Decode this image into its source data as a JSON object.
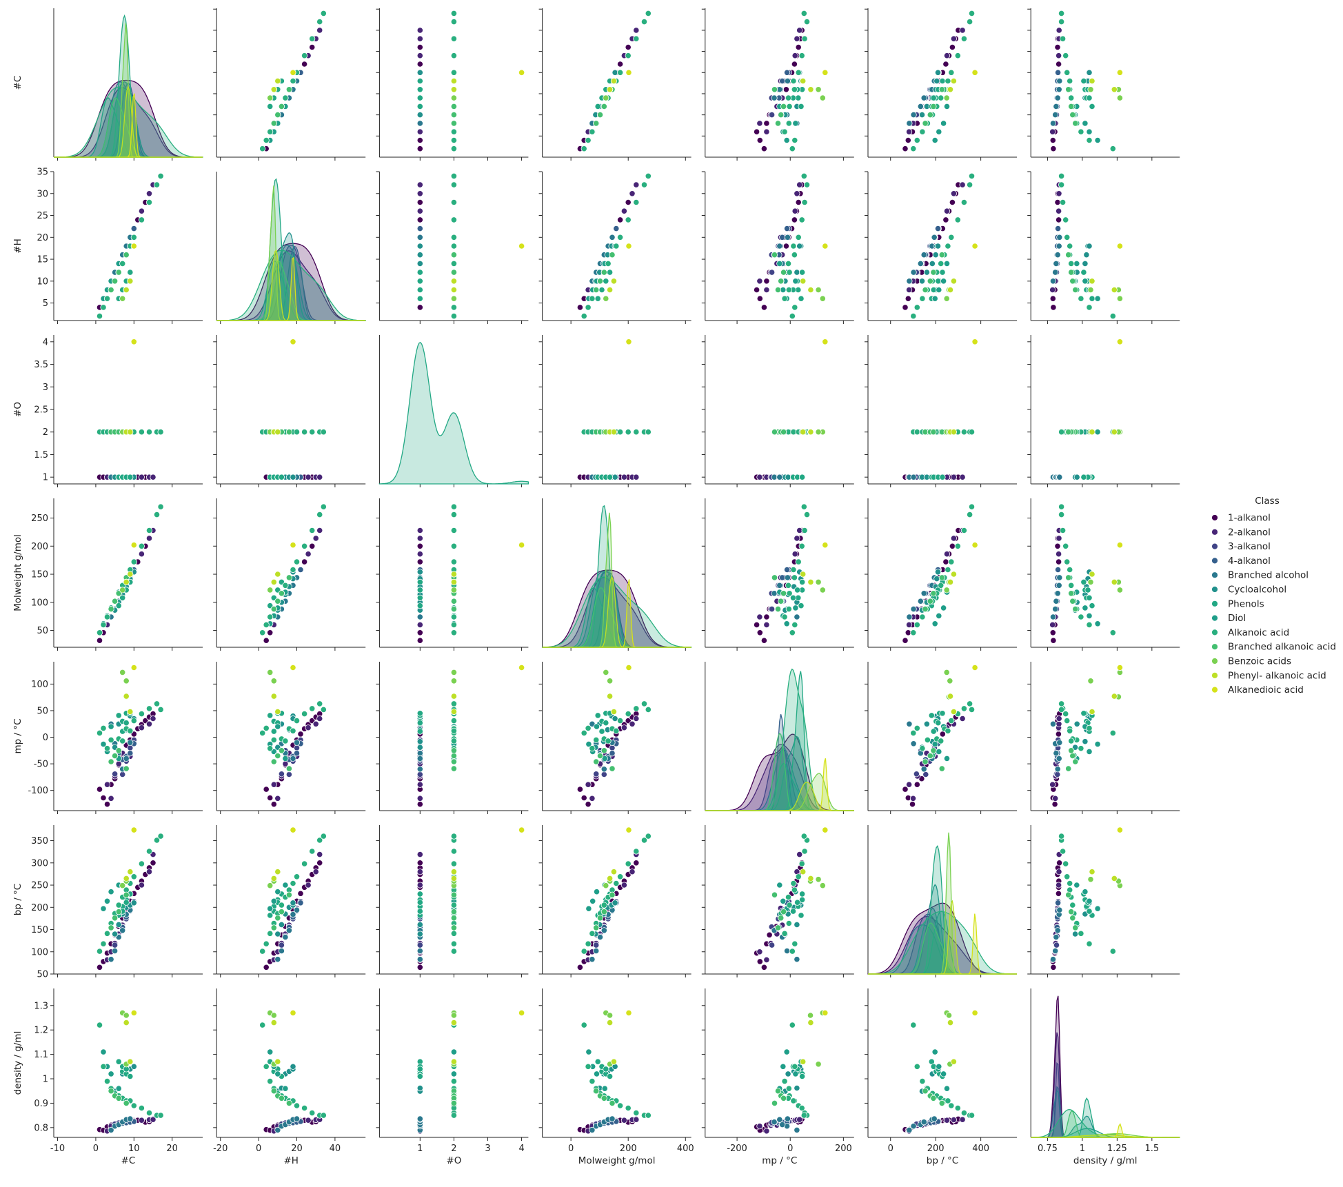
{
  "chart_data": {
    "type": "scatter",
    "variables": [
      "#C",
      "#H",
      "#O",
      "Molweight g/mol",
      "mp / °C",
      "bp / °C",
      "density / g/ml"
    ],
    "axes": [
      {
        "label": "#C",
        "range": [
          -11,
          28
        ],
        "ticks": [
          -10,
          0,
          10,
          20
        ]
      },
      {
        "label": "#H",
        "range": [
          -22,
          56
        ],
        "ticks": [
          -20,
          0,
          20,
          40
        ]
      },
      {
        "label": "#O",
        "range": [
          -0.2,
          4.2
        ],
        "ticks": [
          1,
          2,
          3,
          4
        ]
      },
      {
        "label": "Molweight g/mol",
        "range": [
          -100,
          420
        ],
        "ticks": [
          0,
          200,
          400
        ]
      },
      {
        "label": "mp / °C",
        "range": [
          -320,
          240
        ],
        "ticks": [
          -200,
          0,
          200
        ]
      },
      {
        "label": "bp / °C",
        "range": [
          -100,
          560
        ],
        "ticks": [
          0,
          200,
          400
        ]
      },
      {
        "label": "density / g/ml",
        "range": [
          0.63,
          1.7
        ],
        "ticks": [
          0.75,
          1.0,
          1.25,
          1.5
        ]
      }
    ],
    "row_axes": [
      {
        "label": "#C",
        "range": [
          0.0,
          17.6
        ],
        "ticks": [
          2.5,
          5.0,
          7.5,
          10.0,
          12.5,
          15.0,
          17.5
        ]
      },
      {
        "label": "#H",
        "range": [
          1.0,
          35.0
        ],
        "ticks": [
          5,
          10,
          15,
          20,
          25,
          30,
          35
        ]
      },
      {
        "label": "#O",
        "range": [
          0.85,
          4.15
        ],
        "ticks": [
          1.0,
          1.5,
          2.0,
          2.5,
          3.0,
          3.5,
          4.0
        ]
      },
      {
        "label": "Molweight g/mol",
        "range": [
          20,
          285
        ],
        "ticks": [
          50,
          100,
          150,
          200,
          250
        ]
      },
      {
        "label": "mp / °C",
        "range": [
          -138,
          142
        ],
        "ticks": [
          -100,
          -50,
          0,
          50,
          100
        ]
      },
      {
        "label": "bp / °C",
        "range": [
          50,
          385
        ],
        "ticks": [
          50,
          100,
          150,
          200,
          250,
          300,
          350
        ]
      },
      {
        "label": "density / g/ml",
        "range": [
          0.76,
          1.37
        ],
        "ticks": [
          0.8,
          0.9,
          1.0,
          1.1,
          1.2,
          1.3
        ]
      }
    ],
    "legend": {
      "title": "Class",
      "position": "right",
      "entries": [
        "1-alkanol",
        "2-alkanol",
        "3-alkanol",
        "4-alkanol",
        "Branched alcohol",
        "Cycloalcohol",
        "Phenols",
        "Diol",
        "Alkanoic acid",
        "Branched alkanoic acid",
        "Benzoic acids",
        "Phenyl- alkanoic acid",
        "Alkanedioic acid"
      ],
      "colors": [
        "#440154",
        "#482576",
        "#414487",
        "#35608d",
        "#2a788e",
        "#21918c",
        "#22a884",
        "#1f9e89",
        "#29af7f",
        "#44bf70",
        "#7ad151",
        "#bddf26",
        "#d5e21a"
      ]
    },
    "columns": [
      "class",
      "#C",
      "#H",
      "#O",
      "Molweight g/mol",
      "mp / °C",
      "bp / °C",
      "density / g/ml"
    ],
    "rows": [
      [
        0,
        1,
        4,
        1,
        32,
        -98,
        65,
        0.792
      ],
      [
        0,
        2,
        6,
        1,
        46,
        -114,
        78,
        0.789
      ],
      [
        0,
        3,
        8,
        1,
        60,
        -126,
        97,
        0.803
      ],
      [
        0,
        4,
        10,
        1,
        74,
        -89,
        118,
        0.81
      ],
      [
        0,
        5,
        12,
        1,
        88,
        -78,
        138,
        0.814
      ],
      [
        0,
        6,
        14,
        1,
        102,
        -52,
        157,
        0.814
      ],
      [
        0,
        7,
        16,
        1,
        116,
        -34,
        176,
        0.822
      ],
      [
        0,
        8,
        18,
        1,
        130,
        -15,
        195,
        0.824
      ],
      [
        0,
        9,
        20,
        1,
        144,
        -5,
        214,
        0.827
      ],
      [
        0,
        10,
        22,
        1,
        158,
        6,
        231,
        0.829
      ],
      [
        0,
        11,
        24,
        1,
        172,
        16,
        245,
        0.83
      ],
      [
        0,
        12,
        26,
        1,
        186,
        24,
        259,
        0.831
      ],
      [
        0,
        13,
        28,
        1,
        200,
        31,
        274,
        0.822
      ],
      [
        0,
        14,
        30,
        1,
        214,
        38,
        289,
        0.824
      ],
      [
        0,
        15,
        32,
        1,
        228,
        44,
        300,
        0.835
      ],
      [
        1,
        3,
        8,
        1,
        60,
        -89,
        82,
        0.786
      ],
      [
        1,
        4,
        10,
        1,
        74,
        -115,
        100,
        0.806
      ],
      [
        1,
        5,
        12,
        1,
        88,
        -73,
        119,
        0.809
      ],
      [
        1,
        6,
        14,
        1,
        102,
        -50,
        140,
        0.81
      ],
      [
        1,
        7,
        16,
        1,
        116,
        -30,
        160,
        0.817
      ],
      [
        1,
        8,
        18,
        1,
        130,
        -38,
        179,
        0.819
      ],
      [
        1,
        9,
        20,
        1,
        144,
        -36,
        198,
        0.821
      ],
      [
        1,
        10,
        22,
        1,
        158,
        -6,
        211,
        0.825
      ],
      [
        1,
        12,
        26,
        1,
        186,
        18,
        250,
        0.83
      ],
      [
        1,
        14,
        30,
        1,
        214,
        25,
        280,
        0.832
      ],
      [
        1,
        15,
        32,
        1,
        228,
        35,
        319,
        0.833
      ],
      [
        2,
        5,
        12,
        1,
        88,
        -69,
        115,
        0.815
      ],
      [
        2,
        6,
        14,
        1,
        102,
        -25,
        135,
        0.819
      ],
      [
        2,
        7,
        16,
        1,
        116,
        -70,
        156,
        0.821
      ],
      [
        2,
        8,
        18,
        1,
        130,
        -45,
        174,
        0.822
      ],
      [
        2,
        9,
        20,
        1,
        144,
        -20,
        195,
        0.825
      ],
      [
        2,
        10,
        22,
        1,
        158,
        -5,
        213,
        0.826
      ],
      [
        3,
        7,
        16,
        1,
        116,
        -42,
        155,
        0.818
      ],
      [
        3,
        8,
        18,
        1,
        130,
        -36,
        178,
        0.82
      ],
      [
        3,
        9,
        20,
        1,
        144,
        -30,
        192,
        0.822
      ],
      [
        3,
        10,
        22,
        1,
        158,
        -12,
        210,
        0.825
      ],
      [
        4,
        4,
        10,
        1,
        74,
        25,
        83,
        0.79
      ],
      [
        4,
        5,
        12,
        1,
        88,
        -12,
        102,
        0.806
      ],
      [
        4,
        6,
        14,
        1,
        102,
        -30,
        133,
        0.812
      ],
      [
        4,
        7,
        16,
        1,
        116,
        -60,
        148,
        0.823
      ],
      [
        4,
        8,
        18,
        1,
        130,
        -40,
        184,
        0.833
      ],
      [
        4,
        9,
        20,
        1,
        144,
        -10,
        194,
        0.836
      ],
      [
        5,
        5,
        10,
        1,
        86,
        -19,
        140,
        0.949
      ],
      [
        5,
        6,
        12,
        1,
        100,
        25,
        161,
        0.962
      ],
      [
        5,
        7,
        14,
        1,
        114,
        -8,
        185,
        1.02
      ],
      [
        5,
        8,
        16,
        1,
        128,
        14,
        200,
        1.03
      ],
      [
        5,
        9,
        18,
        1,
        142,
        40,
        205,
        1.04
      ],
      [
        5,
        10,
        18,
        1,
        154,
        35,
        210,
        1.05
      ],
      [
        6,
        6,
        6,
        1,
        94,
        41,
        182,
        1.07
      ],
      [
        6,
        7,
        8,
        1,
        108,
        30,
        202,
        1.03
      ],
      [
        6,
        7,
        8,
        1,
        108,
        11,
        191,
        1.05
      ],
      [
        6,
        8,
        10,
        1,
        122,
        45,
        217,
        1.02
      ],
      [
        6,
        8,
        10,
        1,
        122,
        27,
        211,
        1.04
      ],
      [
        6,
        9,
        12,
        1,
        136,
        45,
        230,
        1.01
      ],
      [
        7,
        2,
        6,
        2,
        62,
        -13,
        197,
        1.11
      ],
      [
        7,
        3,
        8,
        2,
        76,
        -27,
        214,
        1.05
      ],
      [
        7,
        4,
        10,
        2,
        90,
        20,
        235,
        1.02
      ],
      [
        7,
        6,
        14,
        2,
        118,
        -40,
        250,
        0.96
      ],
      [
        8,
        1,
        2,
        2,
        46,
        8,
        101,
        1.22
      ],
      [
        8,
        2,
        4,
        2,
        60,
        17,
        118,
        1.05
      ],
      [
        8,
        3,
        6,
        2,
        74,
        -21,
        141,
        0.99
      ],
      [
        8,
        4,
        8,
        2,
        88,
        -5,
        164,
        0.96
      ],
      [
        8,
        5,
        10,
        2,
        102,
        -34,
        186,
        0.94
      ],
      [
        8,
        6,
        12,
        2,
        116,
        -3,
        205,
        0.93
      ],
      [
        8,
        7,
        14,
        2,
        130,
        -7,
        223,
        0.92
      ],
      [
        8,
        8,
        16,
        2,
        144,
        16,
        239,
        0.91
      ],
      [
        8,
        9,
        18,
        2,
        158,
        12,
        254,
        0.91
      ],
      [
        8,
        10,
        20,
        2,
        172,
        31,
        269,
        0.89
      ],
      [
        8,
        12,
        24,
        2,
        200,
        44,
        298,
        0.88
      ],
      [
        8,
        14,
        28,
        2,
        228,
        54,
        326,
        0.86
      ],
      [
        8,
        16,
        32,
        2,
        256,
        63,
        351,
        0.85
      ],
      [
        8,
        17,
        34,
        2,
        270,
        52,
        360,
        0.85
      ],
      [
        9,
        4,
        8,
        2,
        88,
        -46,
        154,
        0.95
      ],
      [
        9,
        5,
        10,
        2,
        102,
        -35,
        176,
        0.93
      ],
      [
        9,
        6,
        12,
        2,
        116,
        -25,
        190,
        0.92
      ],
      [
        9,
        8,
        16,
        2,
        144,
        -59,
        228,
        0.9
      ],
      [
        10,
        7,
        6,
        2,
        122,
        122,
        249,
        1.27
      ],
      [
        10,
        8,
        8,
        2,
        136,
        106,
        263,
        1.06
      ],
      [
        10,
        8,
        8,
        2,
        136,
        76,
        259,
        1.26
      ],
      [
        11,
        8,
        8,
        2,
        136,
        77,
        265,
        1.23
      ],
      [
        11,
        9,
        10,
        2,
        150,
        48,
        280,
        1.07
      ],
      [
        12,
        10,
        18,
        4,
        202,
        131,
        374,
        1.27
      ]
    ]
  }
}
